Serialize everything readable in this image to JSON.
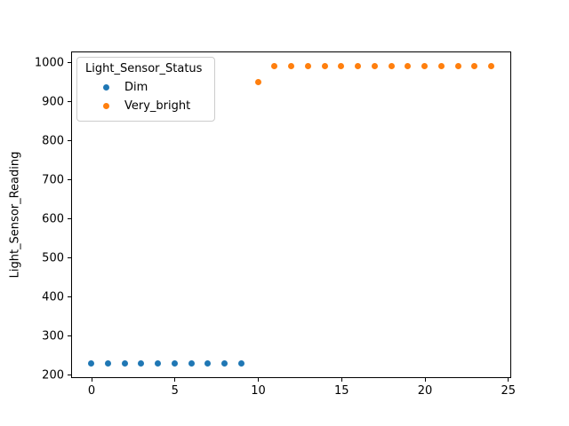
{
  "figure": {
    "background_color": "#ffffff"
  },
  "chart_data": {
    "type": "scatter",
    "title": "",
    "xlabel": "",
    "ylabel": "Light_Sensor_Reading",
    "xlim": [
      -1.2,
      25.2
    ],
    "ylim": [
      192,
      1028
    ],
    "x_ticks": [
      0,
      5,
      10,
      15,
      20,
      25
    ],
    "y_ticks": [
      200,
      300,
      400,
      500,
      600,
      700,
      800,
      900,
      1000
    ],
    "grid": false,
    "legend": {
      "title": "Light_Sensor_Status",
      "position": "upper-left",
      "entries": [
        {
          "label": "Dim",
          "color": "#1f77b4"
        },
        {
          "label": "Very_bright",
          "color": "#ff7f0e"
        }
      ]
    },
    "series": [
      {
        "name": "Dim",
        "color": "#1f77b4",
        "points": [
          [
            0,
            230
          ],
          [
            1,
            230
          ],
          [
            2,
            230
          ],
          [
            3,
            230
          ],
          [
            4,
            230
          ],
          [
            5,
            230
          ],
          [
            6,
            230
          ],
          [
            7,
            230
          ],
          [
            8,
            230
          ],
          [
            9,
            230
          ]
        ]
      },
      {
        "name": "Very_bright",
        "color": "#ff7f0e",
        "points": [
          [
            10,
            950
          ],
          [
            11,
            990
          ],
          [
            12,
            990
          ],
          [
            13,
            990
          ],
          [
            14,
            990
          ],
          [
            15,
            990
          ],
          [
            16,
            990
          ],
          [
            17,
            990
          ],
          [
            18,
            990
          ],
          [
            19,
            990
          ],
          [
            20,
            990
          ],
          [
            21,
            990
          ],
          [
            22,
            990
          ],
          [
            23,
            990
          ],
          [
            24,
            990
          ]
        ]
      }
    ]
  }
}
